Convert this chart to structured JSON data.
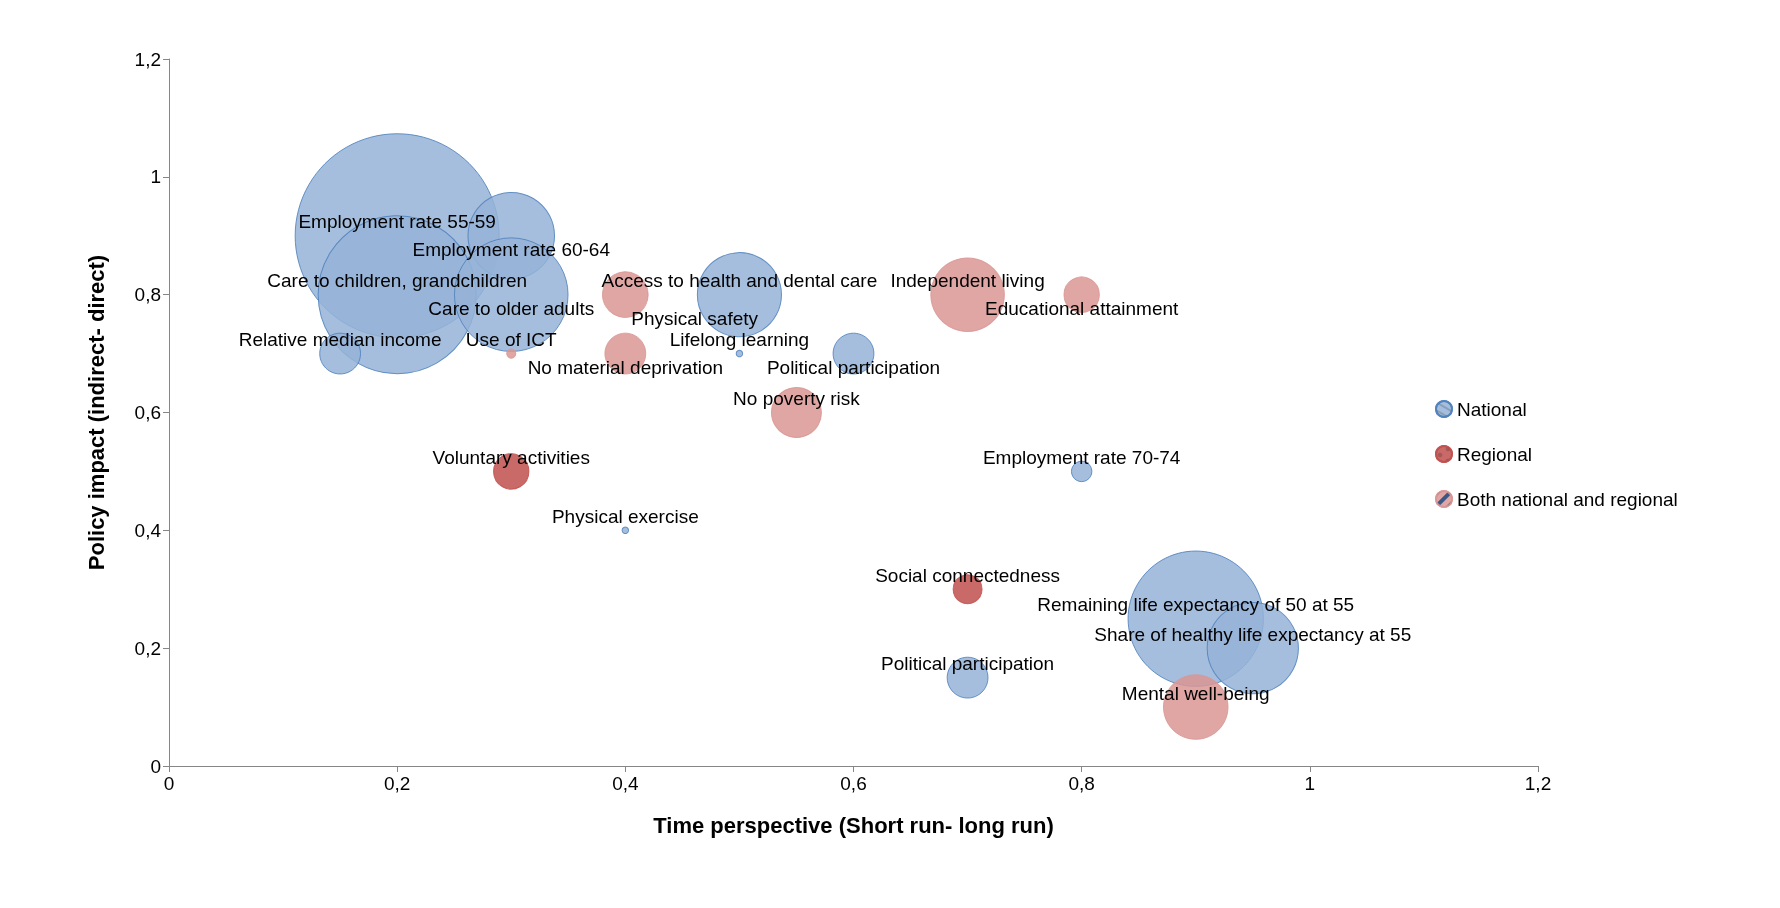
{
  "chart_data": {
    "type": "bubble",
    "xlabel": "Time perspective (Short run- long run)",
    "ylabel": "Policy impact (indirect- direct)",
    "xlim": [
      0,
      1.2
    ],
    "ylim": [
      0,
      1.2
    ],
    "xticks": [
      0,
      {
        "value": 0.2,
        "label": "0,2"
      },
      {
        "value": 0.4,
        "label": "0,4"
      },
      {
        "value": 0.6,
        "label": "0,6"
      },
      {
        "value": 0.8,
        "label": "0,8"
      },
      1,
      {
        "value": 1.2,
        "label": "1,2"
      }
    ],
    "yticks": [
      0,
      {
        "value": 0.2,
        "label": "0,2"
      },
      {
        "value": 0.4,
        "label": "0,4"
      },
      {
        "value": 0.6,
        "label": "0,6"
      },
      {
        "value": 0.8,
        "label": "0,8"
      },
      1,
      {
        "value": 1.2,
        "label": "1,2"
      }
    ],
    "grid": false,
    "legend": "right",
    "marker": "circle",
    "series": [
      {
        "name": "National",
        "color": "#95b3d7",
        "x": [
          0.2,
          0.2,
          0.3,
          0.3,
          0.15,
          0.5,
          0.5,
          0.6,
          0.8,
          0.4,
          0.9,
          0.95,
          0.7
        ],
        "values": [
          0.9,
          0.8,
          0.9,
          0.8,
          0.7,
          0.8,
          0.7,
          0.7,
          0.5,
          0.4,
          0.25,
          0.2,
          0.15
        ],
        "sizes": [
          1,
          0.6,
          0.18,
          0.31,
          0.04,
          0.17,
          0.001,
          0.04,
          0.01,
          0.001,
          0.44,
          0.2,
          0.04
        ]
      },
      {
        "name": "Regional",
        "color": "#c0504d",
        "x": [
          0.3,
          0.7
        ],
        "values": [
          0.5,
          0.3
        ],
        "sizes": [
          0.03,
          0.02
        ]
      },
      {
        "name": "Both national and regional",
        "color": "#d99694",
        "x": [
          0.4,
          0.4,
          0.55,
          0.7,
          0.8,
          0.9,
          0.3
        ],
        "values": [
          0.8,
          0.7,
          0.6,
          0.8,
          0.8,
          0.1,
          0.7
        ],
        "sizes": [
          0.05,
          0.04,
          0.06,
          0.13,
          0.03,
          0.1,
          0.002
        ]
      }
    ],
    "annotations": [
      {
        "text": "Employment rate 55-59",
        "x": 0.2,
        "y": 0.9
      },
      {
        "text": "Care to children, grandchildren",
        "x": 0.2,
        "y": 0.8
      },
      {
        "text": "Employment rate 60-64",
        "x": 0.3,
        "y": 0.9
      },
      {
        "text": "Care to older adults",
        "x": 0.3,
        "y": 0.8
      },
      {
        "text": "Relative median income",
        "x": 0.15,
        "y": 0.7
      },
      {
        "text": "Access to health and dental care",
        "x": 0.5,
        "y": 0.8
      },
      {
        "text": "Lifelong learning",
        "x": 0.5,
        "y": 0.7
      },
      {
        "text": "Political participation",
        "x": 0.6,
        "y": 0.7
      },
      {
        "text": "Employment rate 70-74",
        "x": 0.8,
        "y": 0.5
      },
      {
        "text": "Physical exercise",
        "x": 0.4,
        "y": 0.4
      },
      {
        "text": "Remaining life expectancy of 50 at 55",
        "x": 0.9,
        "y": 0.25
      },
      {
        "text": "Share of healthy life expectancy at 55",
        "x": 0.95,
        "y": 0.2
      },
      {
        "text": "Political participation",
        "x": 0.7,
        "y": 0.15
      },
      {
        "text": "Voluntary activities",
        "x": 0.3,
        "y": 0.5
      },
      {
        "text": "Social connectedness",
        "x": 0.7,
        "y": 0.3
      },
      {
        "text": "Physical safety",
        "x": 0.4,
        "y": 0.8
      },
      {
        "text": "No material deprivation",
        "x": 0.4,
        "y": 0.7
      },
      {
        "text": "No poverty risk",
        "x": 0.55,
        "y": 0.6
      },
      {
        "text": "Independent living",
        "x": 0.7,
        "y": 0.8
      },
      {
        "text": "Educational attainment",
        "x": 0.8,
        "y": 0.8
      },
      {
        "text": "Mental well-being",
        "x": 0.9,
        "y": 0.1
      },
      {
        "text": "Use of ICT",
        "x": 0.3,
        "y": 0.7
      }
    ]
  }
}
